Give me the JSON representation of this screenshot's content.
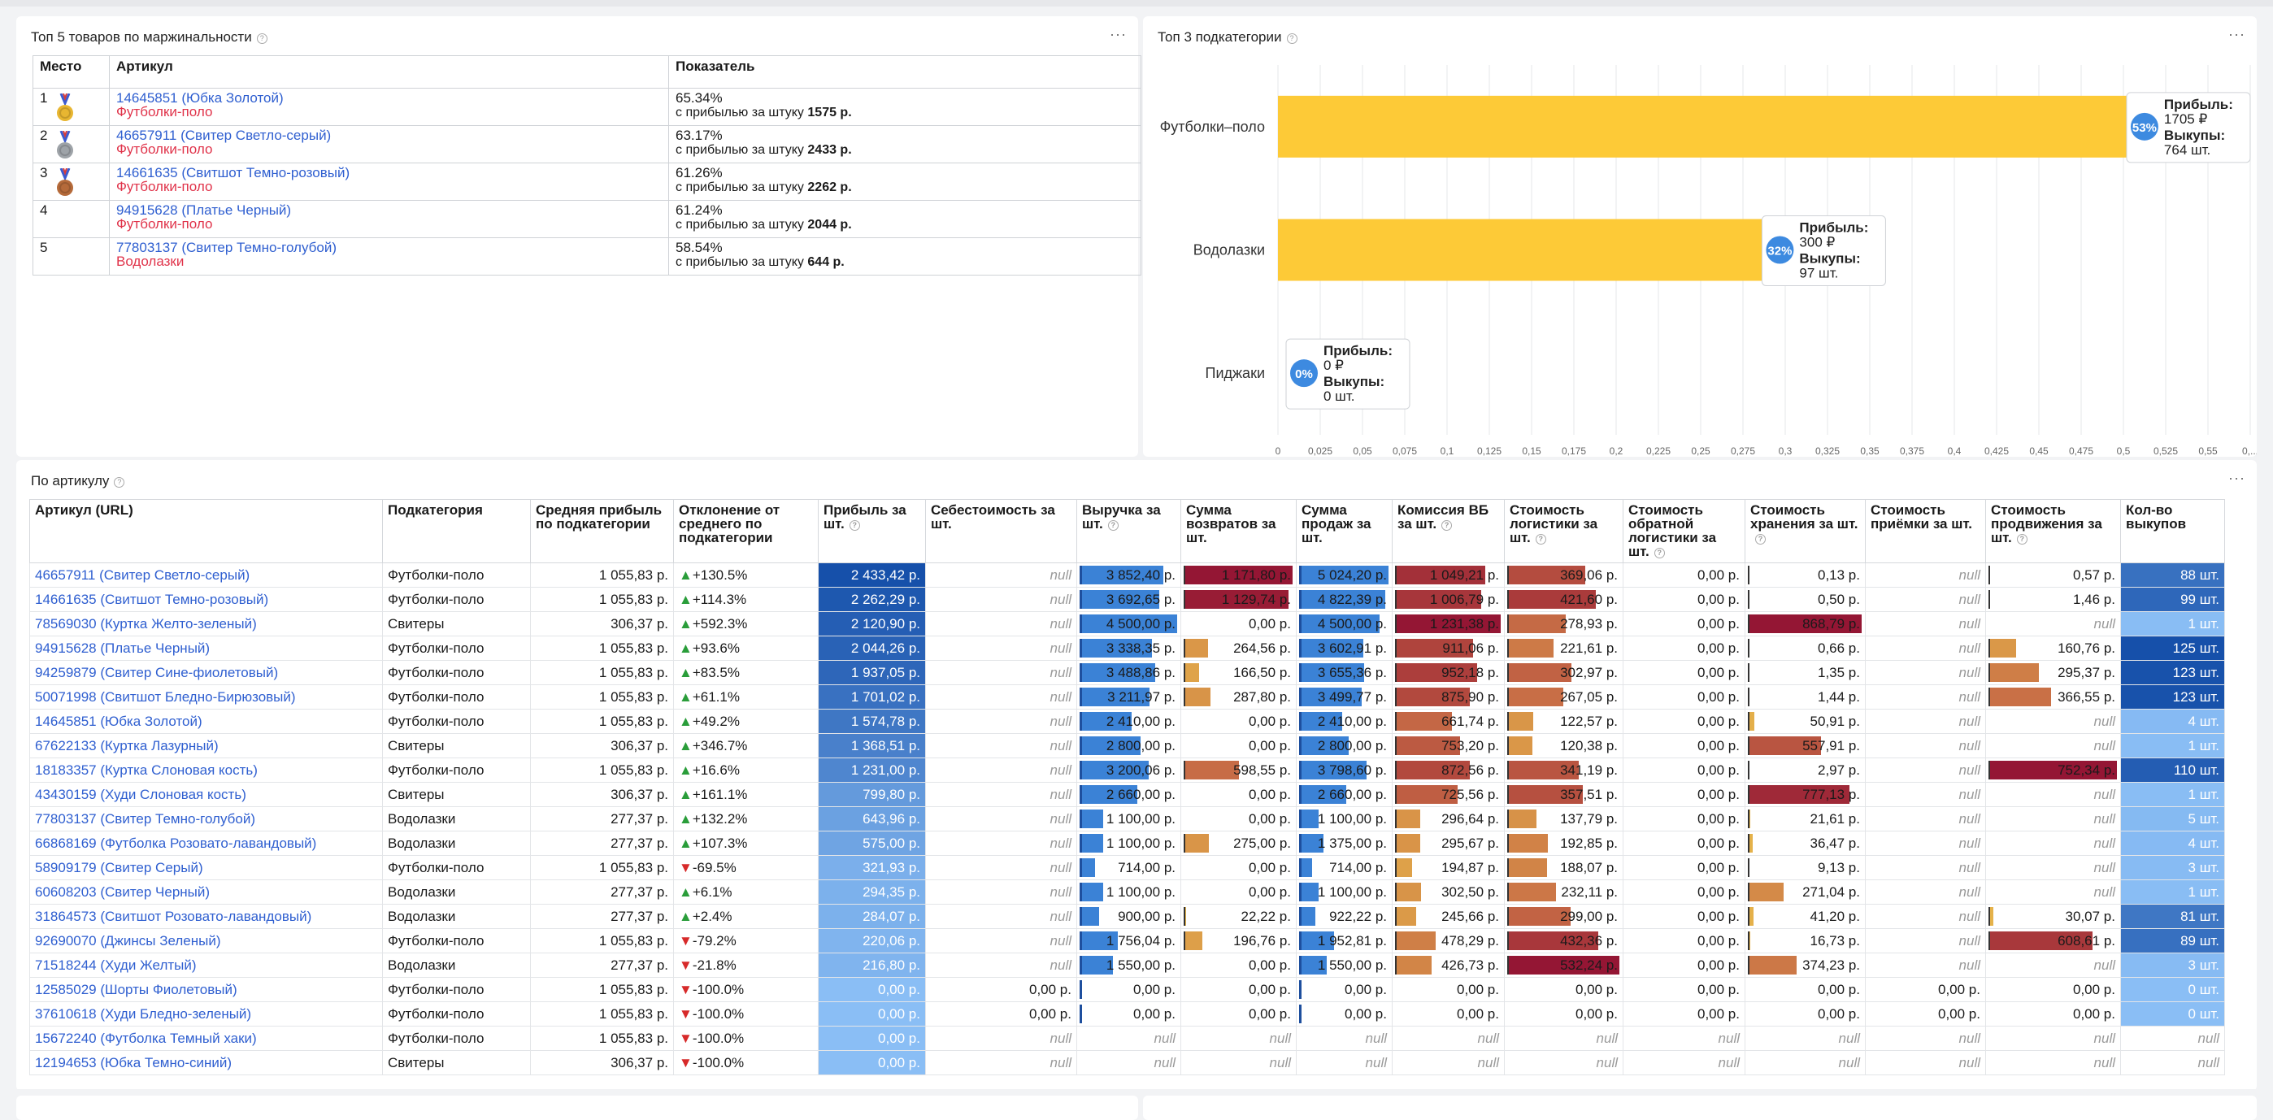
{
  "top5": {
    "title": "Топ 5 товаров по маржинальности",
    "headers": [
      "Место",
      "Артикул",
      "Показатель"
    ],
    "rows": [
      {
        "place": "1",
        "article": "14645851 (Юбка Золотой)",
        "cat": "Футболки-поло",
        "pct": "65.34%",
        "profit_label": "с прибылью за штуку",
        "profit": "1575 р.",
        "medal": "#e8b631"
      },
      {
        "place": "2",
        "article": "46657911 (Свитер Светло-серый)",
        "cat": "Футболки-поло",
        "pct": "63.17%",
        "profit_label": "с прибылью за штуку",
        "profit": "2433 р.",
        "medal": "#9ea3a8"
      },
      {
        "place": "3",
        "article": "14661635 (Свитшот Темно-розовый)",
        "cat": "Футболки-поло",
        "pct": "61.26%",
        "profit_label": "с прибылью за штуку",
        "profit": "2262 р.",
        "medal": "#b56a3a"
      },
      {
        "place": "4",
        "article": "94915628 (Платье Черный)",
        "cat": "Футболки-поло",
        "pct": "61.24%",
        "profit_label": "с прибылью за штуку",
        "profit": "2044 р.",
        "medal": ""
      },
      {
        "place": "5",
        "article": "77803137 (Свитер Темно-голубой)",
        "cat": "Водолазки",
        "pct": "58.54%",
        "profit_label": "с прибылью за штуку",
        "profit": "644 р.",
        "medal": ""
      }
    ]
  },
  "chart_panel": {
    "title": "Топ 3 подкатегории"
  },
  "chart_data": {
    "type": "bar",
    "orientation": "horizontal",
    "categories": [
      "Футболки–поло",
      "Водолазки",
      "Пиджаки"
    ],
    "values": [
      0.53,
      0.32,
      0
    ],
    "xlim": [
      0,
      0.56
    ],
    "ticks": [
      "0",
      "0,025",
      "0,05",
      "0,075",
      "0,1",
      "0,125",
      "0,15",
      "0,175",
      "0,2",
      "0,225",
      "0,25",
      "0,275",
      "0,3",
      "0,325",
      "0,35",
      "0,375",
      "0,4",
      "0,425",
      "0,45",
      "0,475",
      "0,5",
      "0,525",
      "0,55",
      "0,..."
    ],
    "color": "#fdca37",
    "grid": true,
    "labels": [
      {
        "pct": "53%",
        "l1": "Прибыль:",
        "v1": "1705 ₽",
        "l2": "Выкупы:",
        "v2": "764 шт."
      },
      {
        "pct": "32%",
        "l1": "Прибыль:",
        "v1": "300 ₽",
        "l2": "Выкупы:",
        "v2": "97 шт."
      },
      {
        "pct": "0%",
        "l1": "Прибыль:",
        "v1": "0 ₽",
        "l2": "Выкупы:",
        "v2": "0 шт."
      }
    ]
  },
  "main": {
    "title": "По артикулу",
    "headers": [
      "Артикул (URL)",
      "Подкатегория",
      "Средняя прибыль по подкатегории",
      "Отклонение от среднего по подкатегории",
      "Прибыль за шт.",
      "Себестоимость за шт.",
      "Выручка за шт.",
      "Сумма возвратов за шт.",
      "Сумма продаж за шт.",
      "Комиссия ВБ за шт.",
      "Стоимость логистики за шт.",
      "Стоимость обратной логистики за шт.",
      "Стоимость хранения за шт.",
      "Стоимость приёмки за шт.",
      "Стоимость продвижения за шт.",
      "Кол-во выкупов"
    ],
    "rows": [
      [
        "46657911 (Свитер Светло-серый)",
        "Футболки-поло",
        "1 055,83 р.",
        "+130.5%",
        "2 433,42 р.",
        "null",
        "3 852,40 р.",
        "1 171,80 р.",
        "5 024,20 р.",
        "1 049,21 р.",
        "369,06 р.",
        "0,00 р.",
        "0,13 р.",
        "null",
        "0,57 р.",
        "88 шт."
      ],
      [
        "14661635 (Свитшот Темно-розовый)",
        "Футболки-поло",
        "1 055,83 р.",
        "+114.3%",
        "2 262,29 р.",
        "null",
        "3 692,65 р.",
        "1 129,74 р.",
        "4 822,39 р.",
        "1 006,79 р.",
        "421,60 р.",
        "0,00 р.",
        "0,50 р.",
        "null",
        "1,46 р.",
        "99 шт."
      ],
      [
        "78569030 (Куртка Желто-зеленый)",
        "Свитеры",
        "306,37 р.",
        "+592.3%",
        "2 120,90 р.",
        "null",
        "4 500,00 р.",
        "0,00 р.",
        "4 500,00 р.",
        "1 231,38 р.",
        "278,93 р.",
        "0,00 р.",
        "868,79 р.",
        "null",
        "null",
        "1 шт."
      ],
      [
        "94915628 (Платье Черный)",
        "Футболки-поло",
        "1 055,83 р.",
        "+93.6%",
        "2 044,26 р.",
        "null",
        "3 338,35 р.",
        "264,56 р.",
        "3 602,91 р.",
        "911,06 р.",
        "221,61 р.",
        "0,00 р.",
        "0,66 р.",
        "null",
        "160,76 р.",
        "125 шт."
      ],
      [
        "94259879 (Свитер Сине-фиолетовый)",
        "Футболки-поло",
        "1 055,83 р.",
        "+83.5%",
        "1 937,05 р.",
        "null",
        "3 488,86 р.",
        "166,50 р.",
        "3 655,36 р.",
        "952,18 р.",
        "302,97 р.",
        "0,00 р.",
        "1,35 р.",
        "null",
        "295,37 р.",
        "123 шт."
      ],
      [
        "50071998 (Свитшот Бледно-Бирюзовый)",
        "Футболки-поло",
        "1 055,83 р.",
        "+61.1%",
        "1 701,02 р.",
        "null",
        "3 211,97 р.",
        "287,80 р.",
        "3 499,77 р.",
        "875,90 р.",
        "267,05 р.",
        "0,00 р.",
        "1,44 р.",
        "null",
        "366,55 р.",
        "123 шт."
      ],
      [
        "14645851 (Юбка Золотой)",
        "Футболки-поло",
        "1 055,83 р.",
        "+49.2%",
        "1 574,78 р.",
        "null",
        "2 410,00 р.",
        "0,00 р.",
        "2 410,00 р.",
        "661,74 р.",
        "122,57 р.",
        "0,00 р.",
        "50,91 р.",
        "null",
        "null",
        "4 шт."
      ],
      [
        "67622133 (Куртка Лазурный)",
        "Свитеры",
        "306,37 р.",
        "+346.7%",
        "1 368,51 р.",
        "null",
        "2 800,00 р.",
        "0,00 р.",
        "2 800,00 р.",
        "753,20 р.",
        "120,38 р.",
        "0,00 р.",
        "557,91 р.",
        "null",
        "null",
        "1 шт."
      ],
      [
        "18183357 (Куртка Слоновая кость)",
        "Футболки-поло",
        "1 055,83 р.",
        "+16.6%",
        "1 231,00 р.",
        "null",
        "3 200,06 р.",
        "598,55 р.",
        "3 798,60 р.",
        "872,56 р.",
        "341,19 р.",
        "0,00 р.",
        "2,97 р.",
        "null",
        "752,34 р.",
        "110 шт."
      ],
      [
        "43430159 (Худи Слоновая кость)",
        "Свитеры",
        "306,37 р.",
        "+161.1%",
        "799,80 р.",
        "null",
        "2 660,00 р.",
        "0,00 р.",
        "2 660,00 р.",
        "725,56 р.",
        "357,51 р.",
        "0,00 р.",
        "777,13 р.",
        "null",
        "null",
        "1 шт."
      ],
      [
        "77803137 (Свитер Темно-голубой)",
        "Водолазки",
        "277,37 р.",
        "+132.2%",
        "643,96 р.",
        "null",
        "1 100,00 р.",
        "0,00 р.",
        "1 100,00 р.",
        "296,64 р.",
        "137,79 р.",
        "0,00 р.",
        "21,61 р.",
        "null",
        "null",
        "5 шт."
      ],
      [
        "66868169 (Футболка Розовато-лавандовый)",
        "Водолазки",
        "277,37 р.",
        "+107.3%",
        "575,00 р.",
        "null",
        "1 100,00 р.",
        "275,00 р.",
        "1 375,00 р.",
        "295,67 р.",
        "192,85 р.",
        "0,00 р.",
        "36,47 р.",
        "null",
        "null",
        "4 шт."
      ],
      [
        "58909179 (Свитер Серый)",
        "Футболки-поло",
        "1 055,83 р.",
        "-69.5%",
        "321,93 р.",
        "null",
        "714,00 р.",
        "0,00 р.",
        "714,00 р.",
        "194,87 р.",
        "188,07 р.",
        "0,00 р.",
        "9,13 р.",
        "null",
        "null",
        "3 шт."
      ],
      [
        "60608203 (Свитер Черный)",
        "Водолазки",
        "277,37 р.",
        "+6.1%",
        "294,35 р.",
        "null",
        "1 100,00 р.",
        "0,00 р.",
        "1 100,00 р.",
        "302,50 р.",
        "232,11 р.",
        "0,00 р.",
        "271,04 р.",
        "null",
        "null",
        "1 шт."
      ],
      [
        "31864573 (Свитшот Розовато-лавандовый)",
        "Водолазки",
        "277,37 р.",
        "+2.4%",
        "284,07 р.",
        "null",
        "900,00 р.",
        "22,22 р.",
        "922,22 р.",
        "245,66 р.",
        "299,00 р.",
        "0,00 р.",
        "41,20 р.",
        "null",
        "30,07 р.",
        "81 шт."
      ],
      [
        "92690070 (Джинсы Зеленый)",
        "Футболки-поло",
        "1 055,83 р.",
        "-79.2%",
        "220,06 р.",
        "null",
        "1 756,04 р.",
        "196,76 р.",
        "1 952,81 р.",
        "478,29 р.",
        "432,36 р.",
        "0,00 р.",
        "16,73 р.",
        "null",
        "608,61 р.",
        "89 шт."
      ],
      [
        "71518244 (Худи Желтый)",
        "Водолазки",
        "277,37 р.",
        "-21.8%",
        "216,80 р.",
        "null",
        "1 550,00 р.",
        "0,00 р.",
        "1 550,00 р.",
        "426,73 р.",
        "532,24 р.",
        "0,00 р.",
        "374,23 р.",
        "null",
        "null",
        "3 шт."
      ],
      [
        "12585029 (Шорты Фиолетовый)",
        "Футболки-поло",
        "1 055,83 р.",
        "-100.0%",
        "0,00 р.",
        "0,00 р.",
        "0,00 р.",
        "0,00 р.",
        "0,00 р.",
        "0,00 р.",
        "0,00 р.",
        "0,00 р.",
        "0,00 р.",
        "0,00 р.",
        "0,00 р.",
        "0 шт."
      ],
      [
        "37610618 (Худи Бледно-зеленый)",
        "Футболки-поло",
        "1 055,83 р.",
        "-100.0%",
        "0,00 р.",
        "0,00 р.",
        "0,00 р.",
        "0,00 р.",
        "0,00 р.",
        "0,00 р.",
        "0,00 р.",
        "0,00 р.",
        "0,00 р.",
        "0,00 р.",
        "0,00 р.",
        "0 шт."
      ],
      [
        "15672240 (Футболка Темный хаки)",
        "Футболки-поло",
        "1 055,83 р.",
        "-100.0%",
        "0,00 р.",
        "null",
        "null",
        "null",
        "null",
        "null",
        "null",
        "null",
        "null",
        "null",
        "null",
        "null"
      ],
      [
        "12194653 (Юбка Темно-синий)",
        "Свитеры",
        "306,37 р.",
        "-100.0%",
        "0,00 р.",
        "null",
        "null",
        "null",
        "null",
        "null",
        "null",
        "null",
        "null",
        "null",
        "null",
        "null"
      ]
    ]
  }
}
